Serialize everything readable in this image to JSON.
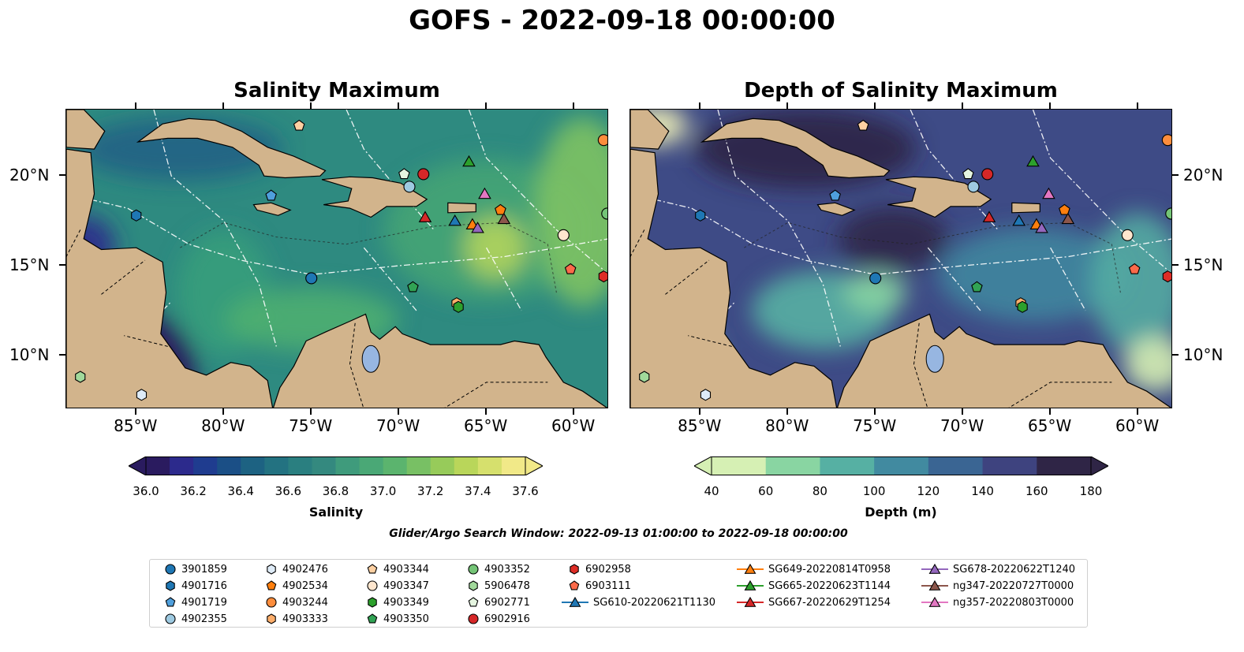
{
  "suptitle": "GOFS - 2022-09-18 00:00:00",
  "panels": {
    "left_title": "Salinity Maximum",
    "right_title": "Depth of Salinity Maximum"
  },
  "axes": {
    "lon_labels": [
      "85°W",
      "80°W",
      "75°W",
      "70°W",
      "65°W",
      "60°W"
    ],
    "lat_labels": [
      "20°N",
      "15°N",
      "10°N"
    ],
    "lon_range": [
      -89,
      -58
    ],
    "lat_range": [
      7,
      23.7
    ]
  },
  "colorbars": {
    "salinity": {
      "title": "Salinity",
      "ticks": [
        "36.0",
        "36.2",
        "36.4",
        "36.6",
        "36.8",
        "37.0",
        "37.2",
        "37.4",
        "37.6"
      ],
      "range": [
        36.0,
        37.6
      ],
      "colors": [
        "#2a1b5f",
        "#2c2a8c",
        "#1f3c8f",
        "#1b4f86",
        "#1d6282",
        "#237281",
        "#2a7f80",
        "#34897f",
        "#3f9b7c",
        "#4aa876",
        "#5bb46e",
        "#78c064",
        "#97cb5a",
        "#b9d65a",
        "#d6e06d",
        "#f1e988"
      ]
    },
    "depth": {
      "title": "Depth (m)",
      "ticks": [
        "40",
        "60",
        "80",
        "100",
        "120",
        "140",
        "160",
        "180"
      ],
      "range": [
        40,
        180
      ],
      "colors": [
        "#d6f0b4",
        "#89d5a2",
        "#56b0a3",
        "#418aa0",
        "#3a6593",
        "#3e437f",
        "#2f2546"
      ]
    }
  },
  "search_window": "Glider/Argo Search Window: 2022-09-13 01:00:00 to 2022-09-18 00:00:00",
  "map_colors": {
    "land": "#d2b48c",
    "lake": "#97b6e1",
    "salinity_base": "#2e8a80",
    "depth_base": "#3e4b86"
  },
  "legend": [
    {
      "label": "3901859",
      "marker": "circle",
      "color": "#1f77b4"
    },
    {
      "label": "4901716",
      "marker": "hexagon",
      "color": "#1f77b4"
    },
    {
      "label": "4901719",
      "marker": "pentagon",
      "color": "#4f9fdc"
    },
    {
      "label": "4902355",
      "marker": "circle",
      "color": "#9ecae1"
    },
    {
      "label": "4902476",
      "marker": "hexagon",
      "color": "#deebf7"
    },
    {
      "label": "4902534",
      "marker": "pentagon",
      "color": "#ff7f0e"
    },
    {
      "label": "4903244",
      "marker": "circle",
      "color": "#fd8d3c"
    },
    {
      "label": "4903333",
      "marker": "hexagon",
      "color": "#fdae6b"
    },
    {
      "label": "4903344",
      "marker": "pentagon",
      "color": "#fdd0a2"
    },
    {
      "label": "4903347",
      "marker": "circle",
      "color": "#fee6ce"
    },
    {
      "label": "4903349",
      "marker": "hexagon",
      "color": "#2ca02c"
    },
    {
      "label": "4903350",
      "marker": "pentagon",
      "color": "#31a354"
    },
    {
      "label": "4903352",
      "marker": "circle",
      "color": "#74c476"
    },
    {
      "label": "5906478",
      "marker": "hexagon",
      "color": "#a1d99b"
    },
    {
      "label": "6902771",
      "marker": "pentagon",
      "color": "#e5f5e0"
    },
    {
      "label": "6902916",
      "marker": "circle",
      "color": "#d62728"
    },
    {
      "label": "6902958",
      "marker": "hexagon",
      "color": "#de2d26"
    },
    {
      "label": "6903111",
      "marker": "pentagon",
      "color": "#fb6a4a"
    },
    {
      "label": "SG610-20220621T1130",
      "marker": "triangle",
      "color": "#1f77b4",
      "line": true
    },
    {
      "label": "SG649-20220814T0958",
      "marker": "triangle",
      "color": "#ff7f0e",
      "line": true
    },
    {
      "label": "SG665-20220623T1144",
      "marker": "triangle",
      "color": "#2ca02c",
      "line": true
    },
    {
      "label": "SG667-20220629T1254",
      "marker": "triangle",
      "color": "#d62728",
      "line": true
    },
    {
      "label": "SG678-20220622T1240",
      "marker": "triangle",
      "color": "#9467bd",
      "line": true
    },
    {
      "label": "ng347-20220727T0000",
      "marker": "triangle",
      "color": "#8c564b",
      "line": true
    },
    {
      "label": "ng357-20220803T0000",
      "marker": "triangle",
      "color": "#e377c2",
      "line": true
    }
  ],
  "platforms": [
    {
      "id": "3901859",
      "lon": -75.0,
      "lat": 14.3
    },
    {
      "id": "4901716",
      "lon": -85.0,
      "lat": 17.8
    },
    {
      "id": "4901719",
      "lon": -77.3,
      "lat": 18.9
    },
    {
      "id": "4902355",
      "lon": -69.4,
      "lat": 19.4
    },
    {
      "id": "4902476",
      "lon": -84.7,
      "lat": 7.8
    },
    {
      "id": "4902534",
      "lon": -64.2,
      "lat": 18.1
    },
    {
      "id": "4903244",
      "lon": -58.3,
      "lat": 22.0
    },
    {
      "id": "4903333",
      "lon": -66.7,
      "lat": 12.9
    },
    {
      "id": "4903344",
      "lon": -75.7,
      "lat": 22.8
    },
    {
      "id": "4903347",
      "lon": -60.6,
      "lat": 16.7
    },
    {
      "id": "4903349",
      "lon": -66.6,
      "lat": 12.7
    },
    {
      "id": "4903350",
      "lon": -69.2,
      "lat": 13.8
    },
    {
      "id": "4903352",
      "lon": -58.1,
      "lat": 17.9
    },
    {
      "id": "5906478",
      "lon": -88.2,
      "lat": 8.8
    },
    {
      "id": "6902771",
      "lon": -69.7,
      "lat": 20.1
    },
    {
      "id": "6902916",
      "lon": -68.6,
      "lat": 20.1
    },
    {
      "id": "6902958",
      "lon": -58.3,
      "lat": 14.4
    },
    {
      "id": "6903111",
      "lon": -60.2,
      "lat": 14.8
    },
    {
      "id": "SG610-20220621T1130",
      "lon": -66.8,
      "lat": 17.5
    },
    {
      "id": "SG649-20220814T0958",
      "lon": -65.8,
      "lat": 17.3
    },
    {
      "id": "SG665-20220623T1144",
      "lon": -66.0,
      "lat": 20.8
    },
    {
      "id": "SG667-20220629T1254",
      "lon": -68.5,
      "lat": 17.7
    },
    {
      "id": "SG678-20220622T1240",
      "lon": -65.5,
      "lat": 17.1
    },
    {
      "id": "ng347-20220727T0000",
      "lon": -64.0,
      "lat": 17.6
    },
    {
      "id": "ng357-20220803T0000",
      "lon": -65.1,
      "lat": 19.0
    }
  ]
}
